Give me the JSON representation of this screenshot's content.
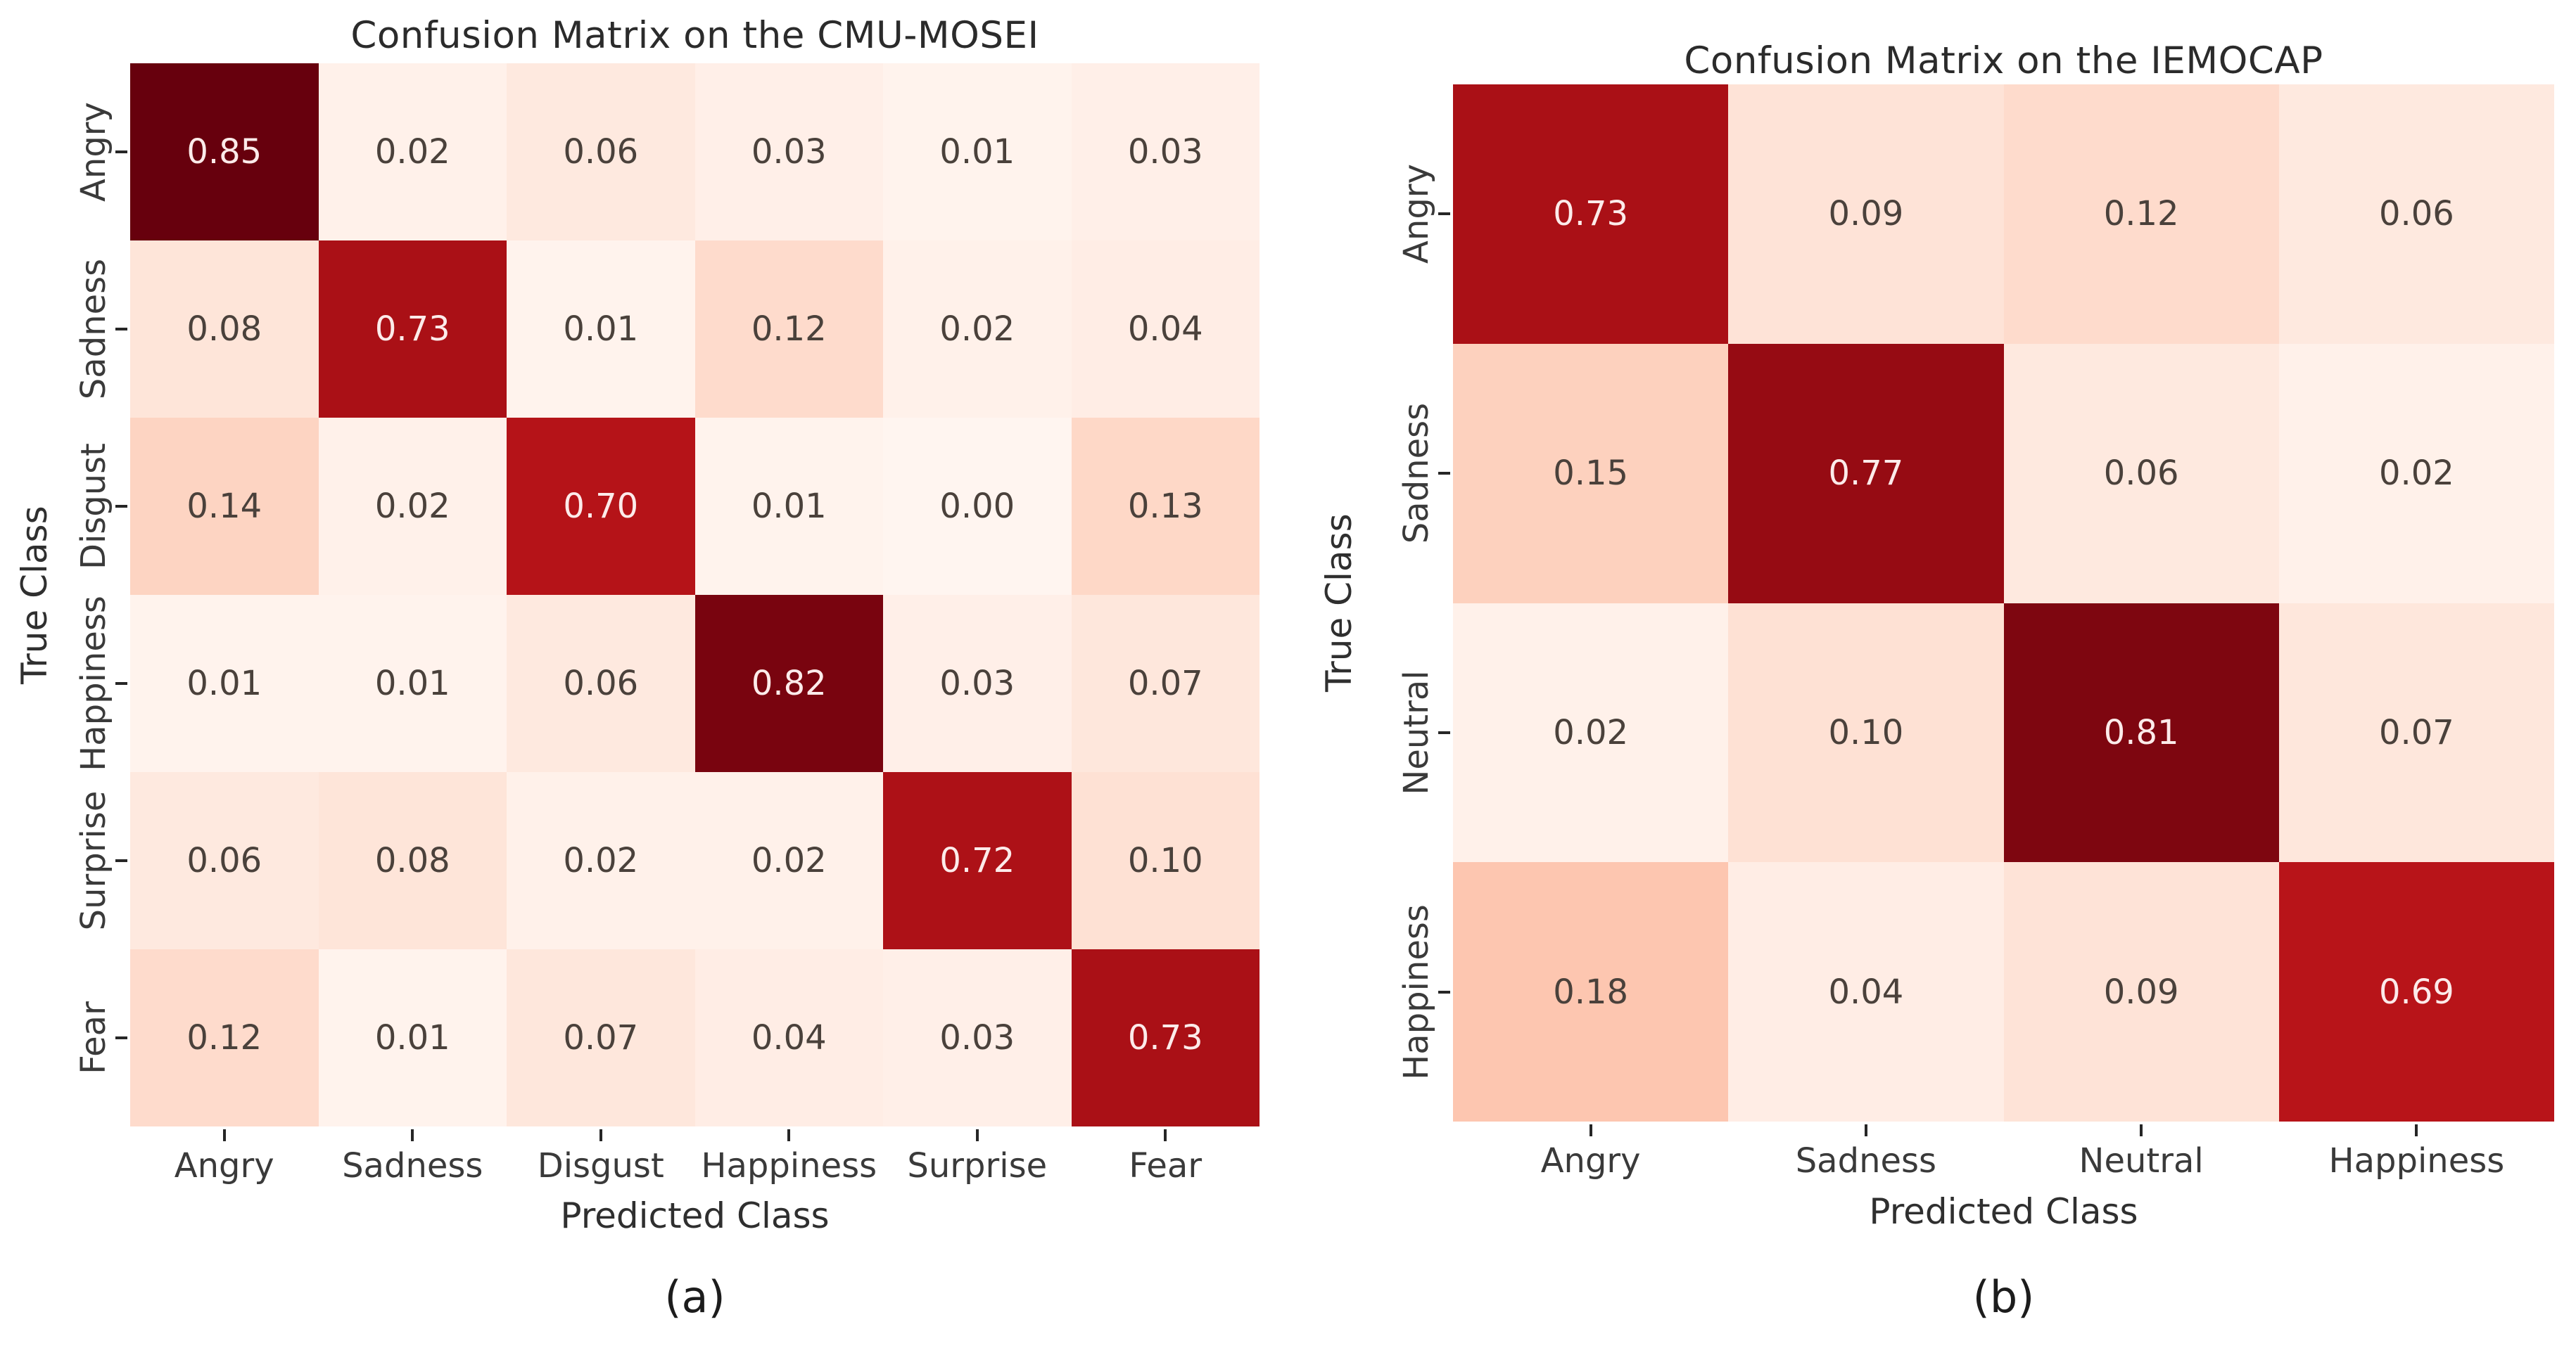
{
  "page": {
    "background": "#ffffff"
  },
  "palette": {
    "colormap": "Reds",
    "colormap_light_end": "#fff5f0",
    "colormap_dark_end": "#67000d",
    "cell_text_dark": "#4a413b",
    "cell_text_light": "#fcebea",
    "tick_color": "#262626",
    "tick_label_color": "#3a3a3a",
    "axis_label_color": "#2f2f2f",
    "title_color": "#2b2b2b"
  },
  "chart_data": [
    {
      "type": "heatmap",
      "title": "Confusion Matrix on the CMU-MOSEI",
      "xlabel": "Predicted Class",
      "ylabel": "True Class",
      "caption": "(a)",
      "x_tick_labels": [
        "Angry",
        "Sadness",
        "Disgust",
        "Happiness",
        "Surprise",
        "Fear"
      ],
      "y_tick_labels": [
        "Angry",
        "Sadness",
        "Disgust",
        "Happiness",
        "Surprise",
        "Fear"
      ],
      "values": [
        [
          0.85,
          0.02,
          0.06,
          0.03,
          0.01,
          0.03
        ],
        [
          0.08,
          0.73,
          0.01,
          0.12,
          0.02,
          0.04
        ],
        [
          0.14,
          0.02,
          0.7,
          0.01,
          0.0,
          0.13
        ],
        [
          0.01,
          0.01,
          0.06,
          0.82,
          0.03,
          0.07
        ],
        [
          0.06,
          0.08,
          0.02,
          0.02,
          0.72,
          0.1
        ],
        [
          0.12,
          0.01,
          0.07,
          0.04,
          0.03,
          0.73
        ]
      ],
      "vmin": 0,
      "vmax": 0.85,
      "value_format": "0.2f",
      "grid": "off",
      "legend": "none"
    },
    {
      "type": "heatmap",
      "title": "Confusion Matrix on the IEMOCAP",
      "xlabel": "Predicted Class",
      "ylabel": "True Class",
      "caption": "(b)",
      "x_tick_labels": [
        "Angry",
        "Sadness",
        "Neutral",
        "Happiness"
      ],
      "y_tick_labels": [
        "Angry",
        "Sadness",
        "Neutral",
        "Happiness"
      ],
      "values": [
        [
          0.73,
          0.09,
          0.12,
          0.06
        ],
        [
          0.15,
          0.77,
          0.06,
          0.02
        ],
        [
          0.02,
          0.1,
          0.81,
          0.07
        ],
        [
          0.18,
          0.04,
          0.09,
          0.69
        ]
      ],
      "vmin": 0,
      "vmax": 0.85,
      "value_format": "0.2f",
      "grid": "off",
      "legend": "none"
    }
  ]
}
